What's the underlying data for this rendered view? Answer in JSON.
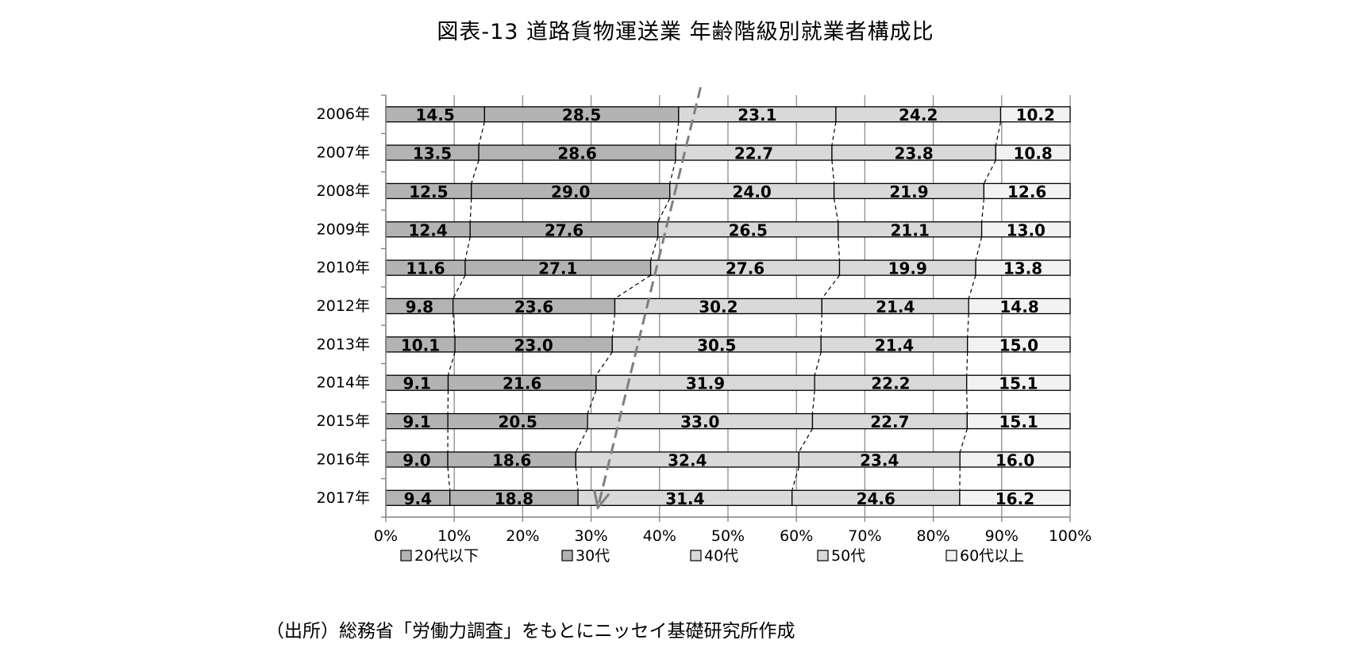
{
  "title": "図表-13  道路貨物運送業   年齢階級別就業者構成比",
  "source": "（出所）総務省「労働力調査」をもとにニッセイ基礎研究所作成",
  "chart_data": {
    "type": "bar",
    "orientation": "horizontal",
    "stacked": "percent",
    "categories": [
      "2006年",
      "2007年",
      "2008年",
      "2009年",
      "2010年",
      "2012年",
      "2013年",
      "2014年",
      "2015年",
      "2016年",
      "2017年"
    ],
    "series": [
      {
        "name": "20代以下",
        "color": "#b3b3b3",
        "values": [
          14.5,
          13.5,
          12.5,
          12.4,
          11.6,
          9.8,
          10.1,
          9.1,
          9.1,
          9.0,
          9.4
        ]
      },
      {
        "name": "30代",
        "color": "#b3b3b3",
        "values": [
          28.5,
          28.6,
          29.0,
          27.6,
          27.1,
          23.6,
          23.0,
          21.6,
          20.5,
          18.6,
          18.8
        ]
      },
      {
        "name": "40代",
        "color": "#d9d9d9",
        "values": [
          23.1,
          22.7,
          24.0,
          26.5,
          27.6,
          30.2,
          30.5,
          31.9,
          33.0,
          32.4,
          31.4
        ]
      },
      {
        "name": "50代",
        "color": "#d9d9d9",
        "values": [
          24.2,
          23.8,
          21.9,
          21.1,
          19.9,
          21.4,
          21.4,
          22.2,
          22.7,
          23.4,
          24.6
        ]
      },
      {
        "name": "60代以上",
        "color": "#f2f2f2",
        "values": [
          10.2,
          10.8,
          12.6,
          13.0,
          13.8,
          14.8,
          15.0,
          15.1,
          15.1,
          16.0,
          16.2
        ]
      }
    ],
    "xlim": [
      0,
      100
    ],
    "x_ticks": [
      "0%",
      "10%",
      "20%",
      "30%",
      "40%",
      "50%",
      "60%",
      "70%",
      "80%",
      "90%",
      "100%"
    ],
    "grid": true,
    "legend_position": "bottom",
    "connector_lines": "dashed",
    "annotation_arrow": {
      "style": "dashed",
      "color": "#7f7f7f",
      "from_x": 46,
      "from_category": "2006年",
      "to_x": 31,
      "to_category": "2017年"
    }
  }
}
